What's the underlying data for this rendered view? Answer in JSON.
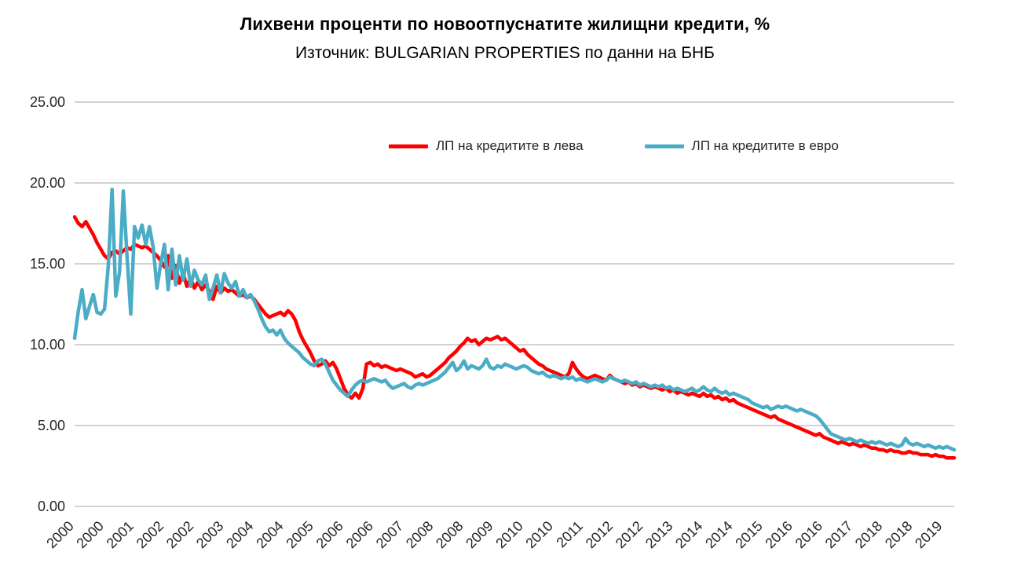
{
  "chart": {
    "title": "Лихвени проценти по новоотпуснатите жилищни кредити, %",
    "subtitle": "Източник: BULGARIAN PROPERTIES по данни на БНБ"
  },
  "chart_data": {
    "type": "line",
    "title": "Лихвени проценти по новоотпуснатите жилищни кредити, %",
    "subtitle": "Източник: BULGARIAN PROPERTIES по данни на БНБ",
    "xlabel": "",
    "ylabel": "",
    "ylim": [
      0,
      25
    ],
    "grid": "horizontal",
    "legend_position": "top-inside",
    "x_start": "2000-01",
    "x_end": "2019-08",
    "x_frequency": "monthly",
    "xtick_interval": 8,
    "xtick_labels": [
      "2000",
      "2000",
      "2001",
      "2002",
      "2002",
      "2003",
      "2004",
      "2004",
      "2005",
      "2006",
      "2006",
      "2007",
      "2008",
      "2008",
      "2009",
      "2010",
      "2010",
      "2011",
      "2012",
      "2012",
      "2013",
      "2014",
      "2014",
      "2015",
      "2016",
      "2016",
      "2017",
      "2018",
      "2018",
      "2019"
    ],
    "yticks": [
      0,
      5,
      10,
      15,
      20,
      25
    ],
    "ytick_labels": [
      "0.00",
      "5.00",
      "10.00",
      "15.00",
      "20.00",
      "25.00"
    ],
    "gridline_color": "#A6A6A6",
    "axis_text_color": "#262626",
    "series": [
      {
        "name": "ЛП на кредитите в лева",
        "color": "#FF0000",
        "values": [
          17.9,
          17.5,
          17.3,
          17.6,
          17.2,
          16.8,
          16.3,
          15.9,
          15.5,
          15.3,
          15.7,
          15.8,
          15.6,
          15.8,
          16.0,
          15.9,
          16.2,
          16.1,
          16.0,
          16.1,
          15.9,
          15.7,
          15.5,
          15.2,
          14.8,
          15.5,
          14.1,
          14.9,
          13.8,
          14.4,
          13.6,
          14.1,
          13.5,
          13.9,
          13.4,
          13.7,
          13.3,
          12.8,
          13.6,
          13.2,
          13.5,
          13.3,
          13.4,
          13.2,
          13.0,
          13.1,
          12.9,
          13.0,
          12.8,
          12.5,
          12.2,
          11.9,
          11.7,
          11.8,
          11.9,
          12.0,
          11.8,
          12.1,
          11.9,
          11.5,
          10.8,
          10.3,
          9.9,
          9.5,
          9.0,
          8.7,
          8.8,
          9.0,
          8.7,
          8.9,
          8.5,
          7.9,
          7.3,
          6.9,
          6.7,
          7.0,
          6.7,
          7.3,
          8.8,
          8.9,
          8.7,
          8.8,
          8.6,
          8.7,
          8.6,
          8.5,
          8.4,
          8.5,
          8.4,
          8.3,
          8.2,
          8.0,
          8.1,
          8.2,
          8.0,
          8.1,
          8.3,
          8.5,
          8.7,
          8.9,
          9.2,
          9.4,
          9.6,
          9.9,
          10.1,
          10.4,
          10.2,
          10.3,
          10.0,
          10.2,
          10.4,
          10.3,
          10.4,
          10.5,
          10.3,
          10.4,
          10.2,
          10.0,
          9.8,
          9.6,
          9.7,
          9.4,
          9.2,
          9.0,
          8.8,
          8.7,
          8.5,
          8.4,
          8.3,
          8.2,
          8.1,
          8.0,
          8.2,
          8.9,
          8.5,
          8.2,
          8.0,
          7.9,
          8.0,
          8.1,
          8.0,
          7.9,
          7.8,
          8.1,
          7.9,
          7.8,
          7.7,
          7.6,
          7.7,
          7.5,
          7.6,
          7.4,
          7.5,
          7.4,
          7.3,
          7.4,
          7.3,
          7.2,
          7.3,
          7.1,
          7.2,
          7.0,
          7.1,
          7.0,
          6.9,
          7.0,
          6.9,
          6.8,
          7.0,
          6.8,
          6.9,
          6.7,
          6.8,
          6.6,
          6.7,
          6.5,
          6.6,
          6.4,
          6.3,
          6.2,
          6.1,
          6.0,
          5.9,
          5.8,
          5.7,
          5.6,
          5.5,
          5.6,
          5.4,
          5.3,
          5.2,
          5.1,
          5.0,
          4.9,
          4.8,
          4.7,
          4.6,
          4.5,
          4.4,
          4.5,
          4.3,
          4.2,
          4.1,
          4.0,
          3.9,
          4.0,
          3.9,
          3.8,
          3.9,
          3.8,
          3.7,
          3.8,
          3.7,
          3.6,
          3.6,
          3.5,
          3.5,
          3.4,
          3.5,
          3.4,
          3.4,
          3.3,
          3.3,
          3.4,
          3.3,
          3.3,
          3.2,
          3.2,
          3.2,
          3.1,
          3.2,
          3.1,
          3.1,
          3.0,
          3.0,
          3.0
        ]
      },
      {
        "name": "ЛП на кредитите в евро",
        "color": "#4BACC6",
        "values": [
          10.4,
          12.1,
          13.4,
          11.6,
          12.4,
          13.1,
          12.0,
          11.9,
          12.2,
          14.9,
          19.6,
          13.0,
          14.5,
          19.5,
          15.5,
          11.9,
          17.3,
          16.6,
          17.4,
          16.2,
          17.3,
          16.0,
          13.5,
          15.0,
          16.2,
          13.4,
          15.9,
          13.7,
          15.5,
          14.0,
          15.3,
          13.6,
          14.6,
          14.0,
          13.7,
          14.3,
          12.8,
          13.5,
          14.3,
          13.2,
          14.4,
          13.8,
          13.5,
          13.9,
          13.0,
          13.4,
          12.9,
          13.1,
          12.7,
          12.2,
          11.6,
          11.1,
          10.8,
          10.9,
          10.6,
          10.9,
          10.4,
          10.1,
          9.9,
          9.7,
          9.5,
          9.2,
          9.0,
          8.8,
          8.7,
          9.0,
          9.1,
          8.8,
          8.3,
          7.8,
          7.5,
          7.2,
          7.0,
          6.8,
          7.2,
          7.5,
          7.7,
          7.8,
          7.7,
          7.8,
          7.9,
          7.8,
          7.7,
          7.8,
          7.5,
          7.3,
          7.4,
          7.5,
          7.6,
          7.4,
          7.3,
          7.5,
          7.6,
          7.5,
          7.6,
          7.7,
          7.8,
          7.9,
          8.1,
          8.3,
          8.6,
          8.9,
          8.4,
          8.6,
          9.0,
          8.5,
          8.7,
          8.6,
          8.5,
          8.7,
          9.1,
          8.6,
          8.5,
          8.7,
          8.6,
          8.8,
          8.7,
          8.6,
          8.5,
          8.6,
          8.7,
          8.6,
          8.4,
          8.3,
          8.2,
          8.3,
          8.1,
          8.0,
          8.1,
          8.0,
          7.9,
          8.0,
          7.9,
          8.0,
          7.8,
          7.9,
          7.8,
          7.7,
          7.8,
          7.9,
          7.8,
          7.7,
          7.8,
          8.0,
          7.9,
          7.8,
          7.7,
          7.8,
          7.7,
          7.6,
          7.7,
          7.5,
          7.6,
          7.5,
          7.4,
          7.5,
          7.4,
          7.5,
          7.3,
          7.4,
          7.2,
          7.3,
          7.2,
          7.1,
          7.2,
          7.3,
          7.1,
          7.2,
          7.4,
          7.2,
          7.1,
          7.3,
          7.1,
          7.0,
          7.1,
          6.9,
          7.0,
          6.9,
          6.8,
          6.7,
          6.6,
          6.4,
          6.3,
          6.2,
          6.1,
          6.2,
          6.0,
          6.1,
          6.2,
          6.1,
          6.2,
          6.1,
          6.0,
          5.9,
          6.0,
          5.9,
          5.8,
          5.7,
          5.6,
          5.4,
          5.1,
          4.8,
          4.5,
          4.4,
          4.3,
          4.2,
          4.1,
          4.2,
          4.1,
          4.0,
          4.1,
          4.0,
          3.9,
          4.0,
          3.9,
          4.0,
          3.9,
          3.8,
          3.9,
          3.8,
          3.7,
          3.8,
          4.2,
          3.9,
          3.8,
          3.9,
          3.8,
          3.7,
          3.8,
          3.7,
          3.6,
          3.7,
          3.6,
          3.7,
          3.6,
          3.5
        ]
      }
    ]
  }
}
